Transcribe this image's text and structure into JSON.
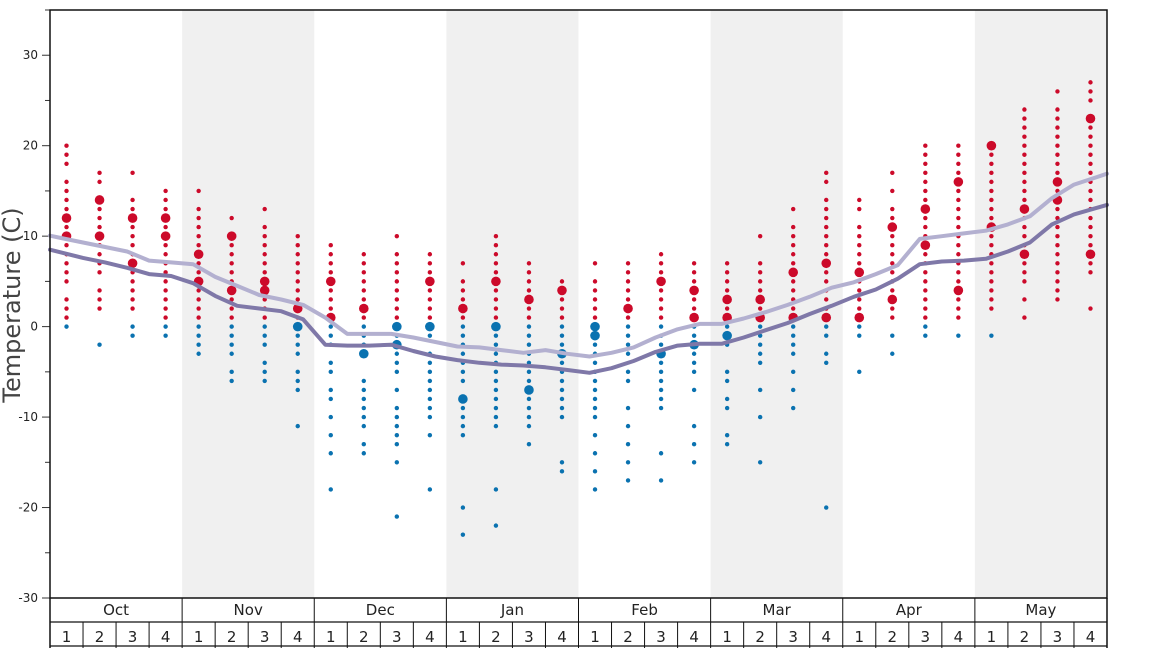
{
  "chart_data": {
    "type": "scatter",
    "ylabel": "Temperature (C)",
    "ylim": [
      -30,
      35
    ],
    "y_ticks": [
      30,
      20,
      10,
      0,
      -10,
      -20,
      -30
    ],
    "months": [
      "Oct",
      "Nov",
      "Dec",
      "Jan",
      "Feb",
      "Mar",
      "Apr",
      "May"
    ],
    "weeks": [
      "1",
      "2",
      "3",
      "4"
    ],
    "colors": {
      "warm_points": "#cc0a2a",
      "cold_points": "#0a72b0",
      "band_shade": "#f0f0f0",
      "upper_line": "#b3b0d0",
      "lower_line": "#7f78a8"
    },
    "series": [
      {
        "values": [
          9.8,
          9.3,
          8.8,
          8.3,
          7.3,
          7.1,
          6.9,
          5.5,
          4.5,
          3.5,
          3.0,
          2.4,
          1.0,
          -0.8,
          -0.8,
          -0.8,
          -1.2,
          -1.7,
          -2.2,
          -2.3,
          -2.6,
          -2.9,
          -2.6,
          -3.0,
          -3.3,
          -2.9,
          -2.3,
          -1.2,
          -0.3,
          0.3,
          0.3,
          0.9,
          1.6,
          2.4,
          3.3,
          4.3,
          4.9,
          5.8,
          6.8,
          9.7,
          10.0,
          10.3,
          10.6,
          11.3,
          12.2,
          14.2,
          15.7,
          16.5
        ]
      },
      {
        "values": [
          8.2,
          7.6,
          7.1,
          6.5,
          5.8,
          5.6,
          4.8,
          3.4,
          2.3,
          2.0,
          1.7,
          0.8,
          -2.0,
          -2.1,
          -2.1,
          -2.0,
          -2.7,
          -3.3,
          -3.7,
          -4.0,
          -4.2,
          -4.3,
          -4.5,
          -4.8,
          -5.1,
          -4.6,
          -3.8,
          -2.8,
          -2.1,
          -1.9,
          -1.9,
          -1.2,
          -0.4,
          0.4,
          1.4,
          2.3,
          3.3,
          4.1,
          5.3,
          6.9,
          7.2,
          7.3,
          7.5,
          8.3,
          9.3,
          11.3,
          12.4,
          13.1
        ]
      }
    ],
    "dots": [
      {
        "warm": [
          20,
          19,
          18,
          16,
          15,
          14,
          13,
          12,
          11,
          10,
          9,
          8,
          7,
          6,
          5,
          3,
          2,
          1
        ],
        "cold": [
          0
        ],
        "big": [
          10,
          12
        ]
      },
      {
        "warm": [
          17,
          16,
          14,
          13,
          12,
          11,
          10,
          9,
          8,
          7,
          6,
          4,
          3,
          2
        ],
        "cold": [
          -2
        ],
        "big": [
          10,
          14
        ]
      },
      {
        "warm": [
          17,
          14,
          13,
          12,
          11,
          10,
          9,
          8,
          7,
          6,
          5,
          4,
          3,
          2
        ],
        "cold": [
          0,
          -1
        ],
        "big": [
          12,
          7
        ]
      },
      {
        "warm": [
          15,
          14,
          13,
          12,
          11,
          10,
          9,
          8,
          7,
          6,
          5,
          4,
          3,
          2,
          1
        ],
        "cold": [
          0,
          -1
        ],
        "big": [
          10,
          12
        ]
      },
      {
        "warm": [
          15,
          13,
          12,
          11,
          10,
          9,
          8,
          7,
          6,
          5,
          4,
          3,
          2,
          1
        ],
        "cold": [
          0,
          -1,
          -2,
          -3
        ],
        "big": [
          8,
          5
        ]
      },
      {
        "warm": [
          12,
          10,
          9,
          8,
          7,
          6,
          5,
          4,
          3,
          2,
          1
        ],
        "cold": [
          0,
          -1,
          -2,
          -3,
          -5,
          -6
        ],
        "big": [
          4,
          10
        ]
      },
      {
        "warm": [
          13,
          11,
          10,
          9,
          8,
          7,
          6,
          5,
          4,
          3,
          2,
          1
        ],
        "cold": [
          0,
          -1,
          -2,
          -4,
          -5,
          -6
        ],
        "big": [
          5,
          4
        ]
      },
      {
        "warm": [
          10,
          9,
          8,
          7,
          6,
          5,
          4,
          3,
          2,
          1
        ],
        "cold": [
          0,
          -1,
          -2,
          -3,
          -5,
          -6,
          -7,
          -11
        ],
        "big": [
          2,
          0
        ]
      },
      {
        "warm": [
          9,
          8,
          7,
          6,
          5,
          4,
          3,
          2,
          1
        ],
        "cold": [
          0,
          -1,
          -2,
          -4,
          -5,
          -7,
          -8,
          -10,
          -12,
          -14,
          -18
        ],
        "big": [
          5,
          1
        ]
      },
      {
        "warm": [
          8,
          7,
          6,
          5,
          4,
          3,
          2,
          1
        ],
        "cold": [
          0,
          -1,
          -2,
          -3,
          -6,
          -7,
          -8,
          -9,
          -10,
          -11,
          -13,
          -14
        ],
        "big": [
          2,
          -3
        ]
      },
      {
        "warm": [
          10,
          8,
          7,
          6,
          5,
          4,
          3,
          2,
          1
        ],
        "cold": [
          0,
          -1,
          -2,
          -3,
          -4,
          -5,
          -7,
          -9,
          -10,
          -11,
          -12,
          -13,
          -15,
          -21
        ],
        "big": [
          0,
          -2
        ]
      },
      {
        "warm": [
          8,
          7,
          6,
          5,
          4,
          3,
          2,
          1
        ],
        "cold": [
          0,
          -1,
          -3,
          -4,
          -5,
          -6,
          -7,
          -8,
          -9,
          -10,
          -12,
          -18
        ],
        "big": [
          5,
          0
        ]
      },
      {
        "warm": [
          7,
          5,
          4,
          3,
          2,
          1
        ],
        "cold": [
          0,
          -1,
          -2,
          -3,
          -4,
          -5,
          -6,
          -8,
          -9,
          -10,
          -11,
          -12,
          -20,
          -23
        ],
        "big": [
          2,
          -8
        ]
      },
      {
        "warm": [
          10,
          9,
          8,
          7,
          6,
          5,
          4,
          3,
          2,
          1
        ],
        "cold": [
          0,
          -1,
          -2,
          -3,
          -4,
          -5,
          -6,
          -7,
          -8,
          -9,
          -10,
          -11,
          -18,
          -22
        ],
        "big": [
          5,
          0
        ]
      },
      {
        "warm": [
          7,
          6,
          5,
          4,
          3,
          2,
          1
        ],
        "cold": [
          0,
          -1,
          -2,
          -3,
          -4,
          -5,
          -6,
          -7,
          -8,
          -9,
          -10,
          -11,
          -13
        ],
        "big": [
          3,
          -7
        ]
      },
      {
        "warm": [
          5,
          4,
          3,
          2,
          1
        ],
        "cold": [
          0,
          -1,
          -2,
          -3,
          -4,
          -5,
          -6,
          -7,
          -8,
          -9,
          -10,
          -15,
          -16
        ],
        "big": [
          4,
          -3
        ]
      },
      {
        "warm": [
          7,
          5,
          4,
          3,
          2,
          1
        ],
        "cold": [
          0,
          -1,
          -2,
          -3,
          -4,
          -5,
          -6,
          -7,
          -8,
          -9,
          -10,
          -12,
          -14,
          -16,
          -18
        ],
        "big": [
          0,
          -1
        ]
      },
      {
        "warm": [
          7,
          6,
          5,
          4,
          3,
          2,
          1
        ],
        "cold": [
          0,
          -1,
          -2,
          -3,
          -5,
          -6,
          -9,
          -11,
          -13,
          -15,
          -17
        ],
        "big": [
          2,
          -4
        ]
      },
      {
        "warm": [
          8,
          7,
          6,
          5,
          4,
          3,
          2,
          1
        ],
        "cold": [
          0,
          -1,
          -2,
          -3,
          -4,
          -5,
          -6,
          -7,
          -8,
          -9,
          -14,
          -17
        ],
        "big": [
          5,
          -3
        ]
      },
      {
        "warm": [
          7,
          6,
          5,
          4,
          3,
          2,
          1
        ],
        "cold": [
          0,
          -1,
          -2,
          -3,
          -4,
          -5,
          -7,
          -11,
          -13,
          -15
        ],
        "big": [
          4,
          1,
          -2
        ]
      },
      {
        "warm": [
          7,
          6,
          5,
          4,
          3,
          2,
          1
        ],
        "cold": [
          0,
          -1,
          -2,
          -5,
          -6,
          -8,
          -9,
          -12,
          -13
        ],
        "big": [
          3,
          1,
          -1
        ]
      },
      {
        "warm": [
          10,
          7,
          6,
          5,
          4,
          3,
          2,
          1
        ],
        "cold": [
          0,
          -1,
          -2,
          -3,
          -4,
          -7,
          -10,
          -15
        ],
        "big": [
          3,
          1
        ]
      },
      {
        "warm": [
          13,
          11,
          10,
          9,
          8,
          7,
          6,
          5,
          4,
          3,
          2,
          1
        ],
        "cold": [
          0,
          -1,
          -2,
          -3,
          -5,
          -7,
          -9
        ],
        "big": [
          6,
          1
        ]
      },
      {
        "warm": [
          17,
          16,
          14,
          13,
          12,
          11,
          10,
          9,
          8,
          7,
          6,
          5,
          4,
          3,
          2,
          1
        ],
        "cold": [
          0,
          -1,
          -3,
          -4,
          -20
        ],
        "big": [
          7,
          1
        ]
      },
      {
        "warm": [
          14,
          13,
          11,
          10,
          9,
          8,
          7,
          6,
          5,
          4,
          3,
          2,
          1
        ],
        "cold": [
          0,
          -1,
          -5
        ],
        "big": [
          6,
          1
        ]
      },
      {
        "warm": [
          17,
          15,
          13,
          12,
          11,
          10,
          9,
          8,
          7,
          6,
          5,
          4,
          3,
          2,
          1
        ],
        "cold": [
          -1,
          -3
        ],
        "big": [
          11,
          3
        ]
      },
      {
        "warm": [
          20,
          19,
          18,
          17,
          16,
          15,
          14,
          13,
          12,
          11,
          10,
          9,
          8,
          7,
          6,
          5,
          4,
          3,
          2,
          1
        ],
        "cold": [
          0,
          -1
        ],
        "big": [
          9,
          13
        ]
      },
      {
        "warm": [
          20,
          19,
          18,
          17,
          16,
          15,
          14,
          13,
          12,
          11,
          10,
          9,
          8,
          7,
          6,
          5,
          4,
          3,
          2,
          1
        ],
        "cold": [
          -1
        ],
        "big": [
          16,
          4
        ]
      },
      {
        "warm": [
          20,
          19,
          18,
          17,
          16,
          15,
          14,
          13,
          12,
          11,
          10,
          9,
          8,
          7,
          6,
          5,
          4,
          3,
          2
        ],
        "cold": [
          -1
        ],
        "big": [
          20,
          11
        ]
      },
      {
        "warm": [
          24,
          23,
          22,
          21,
          20,
          19,
          18,
          17,
          16,
          15,
          14,
          13,
          12,
          11,
          10,
          9,
          8,
          7,
          6,
          5,
          3,
          1
        ],
        "cold": [],
        "big": [
          13,
          8
        ]
      },
      {
        "warm": [
          26,
          24,
          23,
          22,
          21,
          20,
          19,
          18,
          17,
          16,
          15,
          14,
          13,
          12,
          11,
          10,
          9,
          8,
          7,
          6,
          5,
          4,
          3
        ],
        "cold": [],
        "big": [
          16,
          14
        ]
      },
      {
        "warm": [
          27,
          26,
          25,
          23,
          22,
          21,
          20,
          19,
          18,
          17,
          16,
          15,
          14,
          13,
          12,
          11,
          10,
          9,
          8,
          7,
          6,
          2
        ],
        "cold": [],
        "big": [
          23,
          8
        ]
      }
    ]
  }
}
